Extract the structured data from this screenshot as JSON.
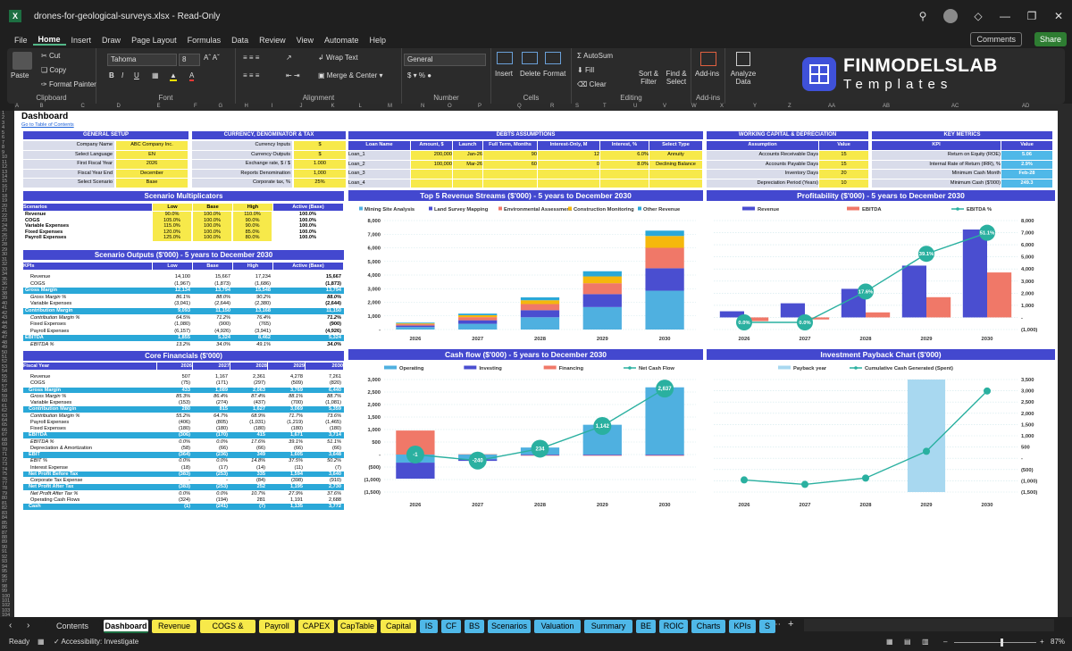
{
  "window": {
    "title": "drones-for-geological-surveys.xlsx  -  Read-Only",
    "app_icon": "excel-icon"
  },
  "menu": {
    "items": [
      "File",
      "Home",
      "Insert",
      "Draw",
      "Page Layout",
      "Formulas",
      "Data",
      "Review",
      "View",
      "Automate",
      "Help"
    ],
    "comments": "Comments",
    "share": "Share"
  },
  "ribbon": {
    "clipboard": {
      "paste": "Paste",
      "cut": "Cut",
      "copy": "Copy",
      "format_painter": "Format Painter",
      "label": "Clipboard"
    },
    "font": {
      "name": "Tahoma",
      "size": "8",
      "label": "Font"
    },
    "alignment": {
      "wrap": "Wrap Text",
      "merge": "Merge & Center",
      "label": "Alignment"
    },
    "number": {
      "format": "General",
      "label": "Number"
    },
    "cells": {
      "insert": "Insert",
      "delete": "Delete",
      "format": "Format",
      "label": "Cells"
    },
    "editing": {
      "autosum": "AutoSum",
      "fill": "Fill",
      "clear": "Clear",
      "sort": "Sort & Filter",
      "find": "Find & Select",
      "label": "Editing"
    },
    "addins": {
      "addins": "Add-ins",
      "label": "Add-ins"
    },
    "analyze": {
      "label": "Analyze Data"
    },
    "brand": {
      "name": "FINMODELSLAB",
      "sub": "Templates"
    }
  },
  "columns": [
    "A",
    "B",
    "C",
    "D",
    "E",
    "F",
    "G",
    "H",
    "I",
    "J",
    "K",
    "L",
    "M",
    "N",
    "O",
    "P",
    "Q",
    "R",
    "S",
    "T",
    "U",
    "V",
    "W",
    "X",
    "Y",
    "Z",
    "AA",
    "AB",
    "AC",
    "AD"
  ],
  "sheet": {
    "title": "Dashboard",
    "link": "Go to Table of Contents",
    "general": {
      "header": "GENERAL SETUP",
      "rows": [
        [
          "Company Name",
          "ABC Company Inc."
        ],
        [
          "Select Language",
          "EN"
        ],
        [
          "First Fiscal Year",
          "2026"
        ],
        [
          "Fiscal Year End",
          "December"
        ],
        [
          "Select Scenario",
          "Base"
        ]
      ]
    },
    "currency": {
      "header": "CURRENCY, DENOMINATOR & TAX",
      "rows": [
        [
          "Currency Inputs",
          "$"
        ],
        [
          "Currency Outputs",
          "$"
        ],
        [
          "Exchange rate, $ / $",
          "1.000"
        ],
        [
          "Reports Denomination",
          "1,000"
        ],
        [
          "Corporate tax, %",
          "25%"
        ]
      ]
    },
    "debts": {
      "header": "DEBTS ASSUMPTIONS",
      "cols": [
        "Loan Name",
        "Amount, $",
        "Launch",
        "Full Term, Months",
        "Interest-Only, M",
        "Interest, %",
        "Select Type"
      ],
      "rows": [
        [
          "Loan_1",
          "200,000",
          "Jan-26",
          "90",
          "12",
          "6.0%",
          "Annuity"
        ],
        [
          "Loan_2",
          "100,000",
          "Mar-26",
          "60",
          "0",
          "8.0%",
          "Declining Balance"
        ],
        [
          "Loan_3",
          "",
          "",
          "",
          "",
          "",
          ""
        ],
        [
          "Loan_4",
          "",
          "",
          "",
          "",
          "",
          ""
        ]
      ]
    },
    "wc": {
      "header": "WORKING CAPITAL & DEPRECIATION",
      "cols": [
        "Assumption",
        "Value"
      ],
      "rows": [
        [
          "Accounts Receivable Days",
          "15"
        ],
        [
          "Accounts Payable Days",
          "15"
        ],
        [
          "Inventory Days",
          "20"
        ],
        [
          "Depreciation Period (Years)",
          "10"
        ]
      ]
    },
    "kpi": {
      "header": "KEY METRICS",
      "cols": [
        "KPI",
        "Value"
      ],
      "rows": [
        [
          "Return on Equity (ROE)",
          "5.06"
        ],
        [
          "Internal Rate of Return (IRR), %",
          "2.9%"
        ],
        [
          "Minimum Cash Month",
          "Feb-28"
        ],
        [
          "Minimum Cash ($'000)",
          "249.3"
        ]
      ]
    },
    "multipliers": {
      "header": "Scenario Multiplicators",
      "cols": [
        "Scenarios",
        "Low",
        "Base",
        "High",
        "Active (Base)"
      ],
      "rows": [
        [
          "Revenue",
          "90.0%",
          "100.0%",
          "110.0%",
          "100.0%"
        ],
        [
          "COGS",
          "105.0%",
          "100.0%",
          "90.0%",
          "100.0%"
        ],
        [
          "Variable Expenses",
          "115.0%",
          "100.0%",
          "90.0%",
          "100.0%"
        ],
        [
          "Fixed Expenses",
          "120.0%",
          "100.0%",
          "85.0%",
          "100.0%"
        ],
        [
          "Payroll Expenses",
          "125.0%",
          "100.0%",
          "80.0%",
          "100.0%"
        ]
      ]
    },
    "outputs": {
      "header": "Scenario Outputs ($'000) - 5 years to December 2030",
      "cols": [
        "KPIs",
        "Low",
        "Base",
        "High",
        "Active (Base)"
      ],
      "rows": [
        [
          "Revenue",
          "14,100",
          "15,667",
          "17,234",
          "15,667",
          "n"
        ],
        [
          "COGS",
          "(1,967)",
          "(1,873)",
          "(1,686)",
          "(1,873)",
          "n"
        ],
        [
          "Gross Margin",
          "12,134",
          "13,794",
          "15,548",
          "13,794",
          "h"
        ],
        [
          "Gross Margin %",
          "86.1%",
          "88.0%",
          "90.2%",
          "88.0%",
          "i"
        ],
        [
          "Variable Expenses",
          "(3,041)",
          "(2,644)",
          "(2,380)",
          "(2,644)",
          "n"
        ],
        [
          "Contribution Margin",
          "9,093",
          "11,150",
          "13,168",
          "11,150",
          "h"
        ],
        [
          "Contribution Margin %",
          "64.5%",
          "71.2%",
          "76.4%",
          "71.2%",
          "i"
        ],
        [
          "Fixed Expenses",
          "(1,080)",
          "(900)",
          "(765)",
          "(900)",
          "n"
        ],
        [
          "Payroll Expenses",
          "(6,157)",
          "(4,926)",
          "(3,941)",
          "(4,926)",
          "n"
        ],
        [
          "EBITDA",
          "1,855",
          "5,324",
          "8,462",
          "5,324",
          "h"
        ],
        [
          "EBITDA %",
          "13.2%",
          "34.0%",
          "49.1%",
          "34.0%",
          "i"
        ]
      ]
    },
    "core": {
      "header": "Core Financials ($'000)",
      "cols": [
        "Fiscal Year",
        "2026",
        "2027",
        "2028",
        "2029",
        "2030"
      ],
      "rows": [
        [
          "Revenue",
          "507",
          "1,167",
          "2,361",
          "4,278",
          "7,261",
          "n"
        ],
        [
          "COGS",
          "(75)",
          "(171)",
          "(297)",
          "(509)",
          "(820)",
          "n"
        ],
        [
          "Gross Margin",
          "433",
          "1,089",
          "2,063",
          "3,769",
          "6,440",
          "h"
        ],
        [
          "Gross Margin %",
          "85.3%",
          "86.4%",
          "87.4%",
          "88.1%",
          "88.7%",
          "i"
        ],
        [
          "Variable Expenses",
          "(153)",
          "(274)",
          "(437)",
          "(700)",
          "(1,081)",
          "n"
        ],
        [
          "Contribution Margin",
          "280",
          "815",
          "1,627",
          "3,069",
          "5,359",
          "h"
        ],
        [
          "Contribution Margin %",
          "55.2%",
          "64.7%",
          "68.9%",
          "71.7%",
          "73.6%",
          "i"
        ],
        [
          "Payroll Expenses",
          "(406)",
          "(805)",
          "(1,031)",
          "(1,219)",
          "(1,465)",
          "n"
        ],
        [
          "Fixed Expenses",
          "(180)",
          "(180)",
          "(180)",
          "(180)",
          "(180)",
          "n"
        ],
        [
          "EBITDA",
          "(306)",
          "(170)",
          "415",
          "1,671",
          "3,714",
          "h"
        ],
        [
          "EBITDA %",
          "0.0%",
          "0.0%",
          "17.6%",
          "39.1%",
          "51.1%",
          "i"
        ],
        [
          "Depreciation & Amortization",
          "(58)",
          "(66)",
          "(66)",
          "(66)",
          "(66)",
          "n"
        ],
        [
          "EBIT",
          "(364)",
          "(236)",
          "349",
          "1,605",
          "3,648",
          "h"
        ],
        [
          "EBIT %",
          "0.0%",
          "0.0%",
          "14.8%",
          "37.5%",
          "50.2%",
          "i"
        ],
        [
          "Interest Expense",
          "(18)",
          "(17)",
          "(14)",
          "(11)",
          "(7)",
          "n"
        ],
        [
          "Net Profit Before Tax",
          "(383)",
          "(253)",
          "335",
          "1,594",
          "3,640",
          "h"
        ],
        [
          "Corporate Tax Expense",
          "-",
          "-",
          "(84)",
          "(398)",
          "(910)",
          "n"
        ],
        [
          "Net Profit After Tax",
          "(383)",
          "(253)",
          "252",
          "1,195",
          "2,730",
          "h"
        ],
        [
          "Net Profit After Tax %",
          "0.0%",
          "0.0%",
          "10.7%",
          "27.9%",
          "37.6%",
          "i"
        ],
        [
          "Operating Cash Flows",
          "(324)",
          "(194)",
          "281",
          "1,191",
          "2,688",
          "n"
        ],
        [
          "Cash",
          "(1)",
          "(241)",
          "(7)",
          "1,135",
          "3,772",
          "h"
        ]
      ]
    }
  },
  "chart_data": [
    {
      "id": "revenue",
      "type": "bar",
      "stacked": true,
      "title": "Top 5 Revenue Streams ($'000) - 5 years to December 2030",
      "categories": [
        "2026",
        "2027",
        "2028",
        "2029",
        "2030"
      ],
      "series": [
        {
          "name": "Mining Site Analysis",
          "color": "#4fb0e0",
          "values": [
            180,
            420,
            900,
            1650,
            2850
          ]
        },
        {
          "name": "Land Survey Mapping",
          "color": "#4a4ed0",
          "values": [
            110,
            260,
            520,
            950,
            1650
          ]
        },
        {
          "name": "Environmental Assessment",
          "color": "#f07868",
          "values": [
            100,
            230,
            450,
            800,
            1500
          ]
        },
        {
          "name": "Construction Monitoring",
          "color": "#f5b80c",
          "values": [
            60,
            140,
            280,
            500,
            870
          ]
        },
        {
          "name": "Other Revenue",
          "color": "#2aa8d8",
          "values": [
            57,
            117,
            211,
            378,
            391
          ]
        }
      ],
      "ylim": [
        0,
        8000
      ],
      "yticks": [
        "-",
        "1,000",
        "2,000",
        "3,000",
        "4,000",
        "5,000",
        "6,000",
        "7,000",
        "8,000"
      ]
    },
    {
      "id": "profit",
      "type": "bar+line",
      "title": "Profitability ($'000) - 5 years to December 2030",
      "categories": [
        "2026",
        "2027",
        "2028",
        "2029",
        "2030"
      ],
      "series": [
        {
          "name": "Revenue",
          "color": "#4a4ed0",
          "values": [
            507,
            1167,
            2361,
            4278,
            7261
          ]
        },
        {
          "name": "EBITDA",
          "color": "#f07868",
          "values": [
            -306,
            -170,
            415,
            1671,
            3714
          ]
        },
        {
          "name": "EBITDA %",
          "color": "#2ab0a0",
          "values": [
            0.0,
            0.0,
            17.6,
            39.1,
            51.1
          ]
        }
      ],
      "point_labels": [
        "0.0%",
        "0.0%",
        "17.6%",
        "39.1%",
        "51.1%"
      ],
      "ylim": [
        -1000,
        8000
      ],
      "yticks": [
        "(1,000)",
        "-",
        "1,000",
        "2,000",
        "3,000",
        "4,000",
        "5,000",
        "6,000",
        "7,000",
        "8,000"
      ]
    },
    {
      "id": "cashflow",
      "type": "bar+line",
      "title": "Cash flow ($'000) - 5 years to December 2030",
      "categories": [
        "2026",
        "2027",
        "2028",
        "2029",
        "2030"
      ],
      "series": [
        {
          "name": "Operating",
          "color": "#4fb0e0",
          "values": [
            -324,
            -194,
            281,
            1191,
            2688
          ]
        },
        {
          "name": "Investing",
          "color": "#4a4ed0",
          "values": [
            -640,
            -60,
            -30,
            -30,
            -30
          ]
        },
        {
          "name": "Financing",
          "color": "#f07868",
          "values": [
            960,
            14,
            -17,
            -19,
            -21
          ]
        },
        {
          "name": "Net Cash Flow",
          "color": "#2ab0a0",
          "values": [
            -1,
            -240,
            234,
            1142,
            2637
          ]
        }
      ],
      "point_labels": [
        "-1",
        "-240",
        "234",
        "1,142",
        "2,637"
      ],
      "ylim": [
        -1500,
        3000
      ],
      "yticks": [
        "(1,500)",
        "(1,000)",
        "(500)",
        "-",
        "500",
        "1,000",
        "1,500",
        "2,000",
        "2,500",
        "3,000"
      ]
    },
    {
      "id": "payback",
      "type": "bar+line",
      "title": "Investment Payback Chart ($'000)",
      "categories": [
        "2026",
        "2027",
        "2028",
        "2029",
        "2030"
      ],
      "series": [
        {
          "name": "Payback year",
          "color": "#a8d8f0",
          "values": [
            0,
            0,
            0,
            3500,
            0
          ]
        },
        {
          "name": "Cumulative Cash Generated (Spent)",
          "color": "#2ab0a0",
          "values": [
            -960,
            -1160,
            -880,
            310,
            2990
          ]
        }
      ],
      "ylim": [
        -1500,
        3500
      ],
      "yticks": [
        "(1,500)",
        "(1,000)",
        "(500)",
        "-",
        "500",
        "1,000",
        "1,500",
        "2,000",
        "2,500",
        "3,000",
        "3,500"
      ]
    }
  ],
  "tabs": {
    "items": [
      [
        "Contents",
        "#1f1f1f"
      ],
      [
        "Dashboard",
        "#ffffff"
      ],
      [
        "Revenue",
        "#f7e94a"
      ],
      [
        "COGS & OPEX",
        "#f7e94a"
      ],
      [
        "Payroll",
        "#f7e94a"
      ],
      [
        "CAPEX",
        "#f7e94a"
      ],
      [
        "CapTable",
        "#f7e94a"
      ],
      [
        "Capital",
        "#f7e94a"
      ],
      [
        "IS",
        "#4fb8e8"
      ],
      [
        "CF",
        "#4fb8e8"
      ],
      [
        "BS",
        "#4fb8e8"
      ],
      [
        "Scenarios",
        "#4fb8e8"
      ],
      [
        "Valuation",
        "#4fb8e8"
      ],
      [
        "Summary",
        "#4fb8e8"
      ],
      [
        "BE",
        "#4fb8e8"
      ],
      [
        "ROIC",
        "#4fb8e8"
      ],
      [
        "Charts",
        "#4fb8e8"
      ],
      [
        "KPIs",
        "#4fb8e8"
      ],
      [
        "S",
        "#4fb8e8"
      ]
    ]
  },
  "status": {
    "ready": "Ready",
    "accessibility": "Accessibility: Investigate",
    "zoom": "87%"
  }
}
